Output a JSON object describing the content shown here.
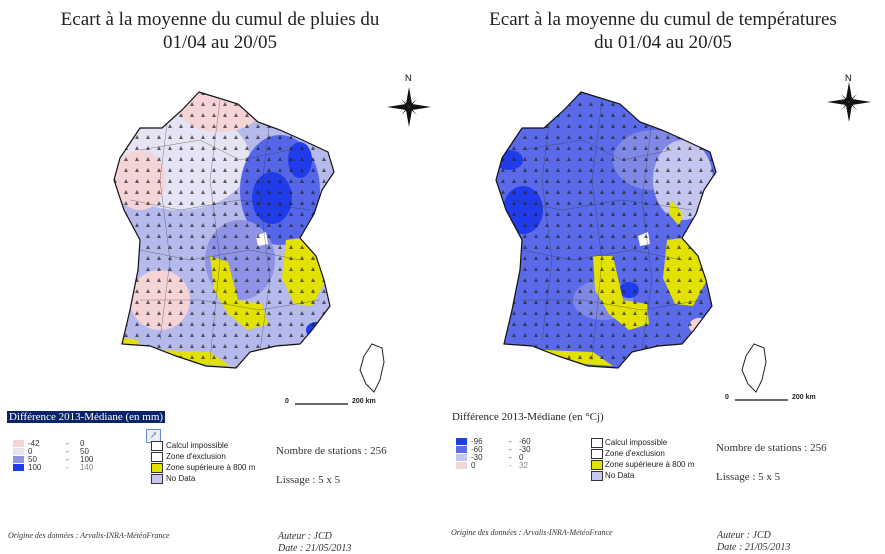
{
  "left": {
    "title_line1": "Ecart à la moyenne du cumul de pluies du",
    "title_line2": "01/04 au 20/05",
    "legend_heading": "Différence 2013-Médiane (en mm)",
    "legend": [
      {
        "color": "#f5d4d8",
        "from": "-42",
        "to": "0"
      },
      {
        "color": "#e4e4f4",
        "from": "0",
        "to": "50"
      },
      {
        "color": "#8f93e6",
        "from": "50",
        "to": "100"
      },
      {
        "color": "#1f3bea",
        "from": "100",
        "to": "140"
      }
    ],
    "categories": [
      {
        "label": "Calcul impossible",
        "color": "#ffffff"
      },
      {
        "label": "Zone d'exclusion",
        "color": "#ffffff"
      },
      {
        "label": "Zone supérieure à 800 m",
        "color": "#e3e100"
      },
      {
        "label": "No Data",
        "color": "#c8c8ee"
      }
    ],
    "stations": "Nombre de stations : 256",
    "smoothing": "Lissage : 5 x 5",
    "source": "Origine des données : Arvalis-INRA-MétéoFrance",
    "author": "Auteur : JCD",
    "date": "Date : 21/05/2013",
    "scale_start": "0",
    "scale_end": "200 km",
    "north": "N"
  },
  "right": {
    "title_line1": "Ecart à la moyenne du cumul de températures",
    "title_line2": "du 01/04 au 20/05",
    "legend_heading": "Différence 2013-Médiane (en °Cj)",
    "legend": [
      {
        "color": "#1f3bea",
        "from": "-96",
        "to": "-60"
      },
      {
        "color": "#5a6ae8",
        "from": "-60",
        "to": "-30"
      },
      {
        "color": "#c4c6f0",
        "from": "-30",
        "to": "0"
      },
      {
        "color": "#f5d4d8",
        "from": "0",
        "to": "32"
      }
    ],
    "categories": [
      {
        "label": "Calcul impossible",
        "color": "#ffffff"
      },
      {
        "label": "Zone d'exclusion",
        "color": "#ffffff"
      },
      {
        "label": "Zone supérieure à 800 m",
        "color": "#e3e100"
      },
      {
        "label": "No Data",
        "color": "#c8c8ee"
      }
    ],
    "stations": "Nombre de stations : 256",
    "smoothing": "Lissage : 5 x 5",
    "source": "Origine des données : Arvalis-INRA-MétéoFrance",
    "author": "Auteur : JCD",
    "date": "Date : 21/05/2013",
    "scale_start": "0",
    "scale_end": "200 km",
    "north": "N"
  }
}
